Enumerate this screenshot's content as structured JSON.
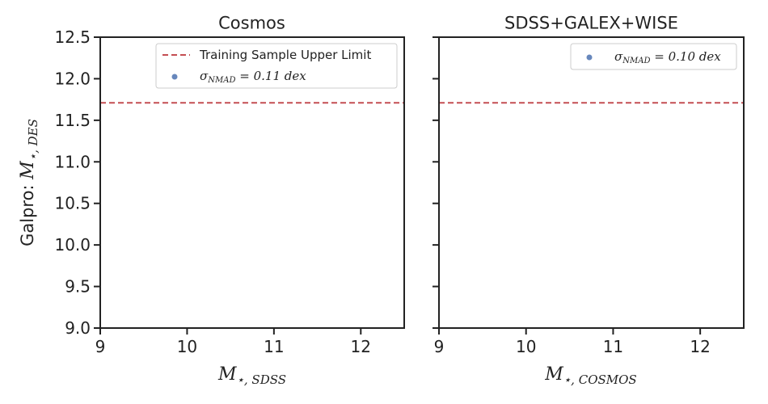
{
  "chart_data": [
    {
      "type": "scatter",
      "title": "Cosmos",
      "xlabel": "M",
      "xlabel_sub": "⋆, SDSS",
      "ylabel_prefix": "Galpro: ",
      "ylabel_math": "M",
      "ylabel_sub": "⋆, DES",
      "xlim": [
        9,
        12.5
      ],
      "ylim": [
        9.0,
        12.5
      ],
      "xticks": [
        "9",
        "10",
        "11",
        "12"
      ],
      "xtick_values": [
        9,
        10,
        11,
        12
      ],
      "yticks": [
        "9.0",
        "9.5",
        "10.0",
        "10.5",
        "11.0",
        "11.5",
        "12.0",
        "12.5"
      ],
      "ytick_values": [
        9.0,
        9.5,
        10.0,
        10.5,
        11.0,
        11.5,
        12.0,
        12.5
      ],
      "hline": {
        "y": 11.71,
        "color": "#c44e52",
        "style": "dashed",
        "label": "Training Sample Upper Limit"
      },
      "series": [
        {
          "name": "σNMAD = 0.11 dex",
          "name_sigma": "σ",
          "name_sub": "NMAD",
          "name_rest": " = 0.11 dex",
          "color": "#4c72b0",
          "points": []
        }
      ],
      "legend": "top-right",
      "grid": false
    },
    {
      "type": "scatter",
      "title": "SDSS+GALEX+WISE",
      "xlabel": "M",
      "xlabel_sub": "⋆, COSMOS",
      "xlim": [
        9,
        12.5
      ],
      "ylim": [
        9.0,
        12.5
      ],
      "xticks": [
        "9",
        "10",
        "11",
        "12"
      ],
      "xtick_values": [
        9,
        10,
        11,
        12
      ],
      "ytick_values": [
        9.0,
        9.5,
        10.0,
        10.5,
        11.0,
        11.5,
        12.0,
        12.5
      ],
      "hline": {
        "y": 11.71,
        "color": "#c44e52",
        "style": "dashed"
      },
      "series": [
        {
          "name": "σNMAD = 0.10 dex",
          "name_sigma": "σ",
          "name_sub": "NMAD",
          "name_rest": " = 0.10 dex",
          "color": "#4c72b0",
          "points": []
        }
      ],
      "legend": "top-right",
      "grid": false
    }
  ]
}
